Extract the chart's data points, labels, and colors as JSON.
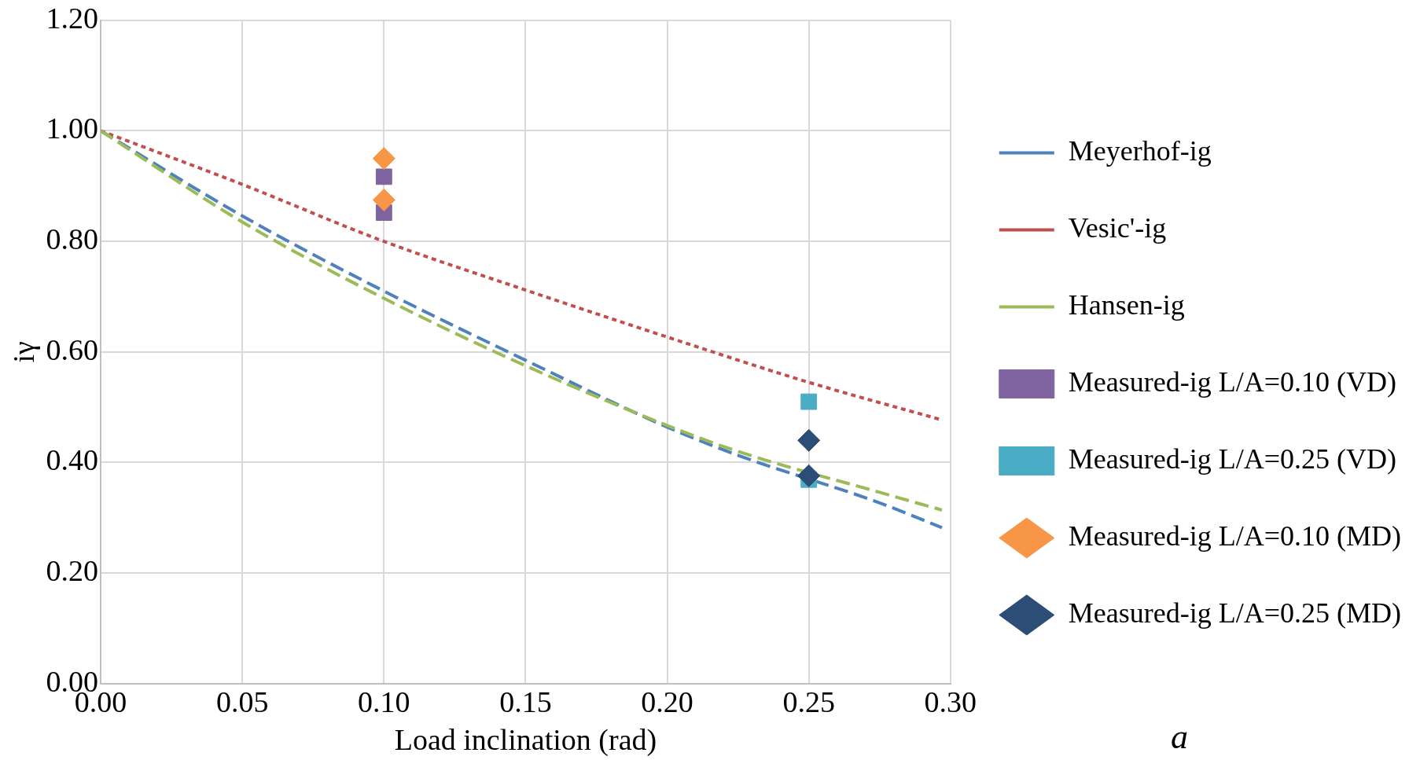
{
  "chart_data": {
    "type": "line",
    "xlabel": "Load inclination (rad)",
    "ylabel": "iγ",
    "xlim": [
      0,
      0.3
    ],
    "ylim": [
      0,
      1.2
    ],
    "xticks": [
      {
        "value": 0,
        "label": "0.00"
      },
      {
        "value": 0.05,
        "label": "0.05"
      },
      {
        "value": 0.1,
        "label": "0.10"
      },
      {
        "value": 0.15,
        "label": "0.15"
      },
      {
        "value": 0.2,
        "label": "0.20"
      },
      {
        "value": 0.25,
        "label": "0.25"
      },
      {
        "value": 0.3,
        "label": "0.30"
      }
    ],
    "yticks": [
      {
        "value": 0,
        "label": "0.00"
      },
      {
        "value": 0.2,
        "label": "0.20"
      },
      {
        "value": 0.4,
        "label": "0.40"
      },
      {
        "value": 0.6,
        "label": "0.60"
      },
      {
        "value": 0.8,
        "label": "0.80"
      },
      {
        "value": 1,
        "label": "1.00"
      },
      {
        "value": 1.2,
        "label": "1.20"
      }
    ],
    "grid": true,
    "legend": "right",
    "series": [
      {
        "name": "Meyerhof-ig",
        "color": "#4f81bd",
        "line_style": "dashed",
        "marker": "none",
        "x": [
          0,
          0.05,
          0.1,
          0.15,
          0.2,
          0.225,
          0.275,
          0.297
        ],
        "values": [
          1,
          0.846,
          0.71,
          0.585,
          0.464,
          0.413,
          0.327,
          0.282
        ]
      },
      {
        "name": "Vesic'-ig",
        "color": "#c0504d",
        "line_style": "dotted",
        "marker": "none",
        "x": [
          0,
          0.05,
          0.1,
          0.15,
          0.2,
          0.25,
          0.297
        ],
        "values": [
          1,
          0.903,
          0.8,
          0.712,
          0.627,
          0.545,
          0.477
        ]
      },
      {
        "name": "Hansen-ig",
        "color": "#9bbb59",
        "line_style": "dashed",
        "marker": "none",
        "x": [
          0,
          0.05,
          0.1,
          0.15,
          0.2,
          0.225,
          0.275,
          0.297
        ],
        "values": [
          1,
          0.835,
          0.697,
          0.575,
          0.467,
          0.42,
          0.346,
          0.314
        ]
      },
      {
        "name": "Measured-ig L/A=0.10 (VD)",
        "type": "scatter",
        "color": "#8064a2",
        "marker": "square",
        "x": [
          0.1,
          0.1
        ],
        "values": [
          0.917,
          0.852
        ]
      },
      {
        "name": "Measured-ig L/A=0.25 (VD)",
        "type": "scatter",
        "color": "#4bacc6",
        "marker": "square",
        "x": [
          0.25,
          0.25
        ],
        "values": [
          0.51,
          0.369
        ]
      },
      {
        "name": "Measured-ig L/A=0.10 (MD)",
        "type": "scatter",
        "color": "#f79646",
        "marker": "diamond",
        "x": [
          0.1,
          0.1
        ],
        "values": [
          0.95,
          0.875
        ]
      },
      {
        "name": "Measured-ig L/A=0.25 (MD)",
        "type": "scatter",
        "color": "#2c4d75",
        "marker": "diamond",
        "x": [
          0.25,
          0.25
        ],
        "values": [
          0.44,
          0.376
        ]
      }
    ],
    "annotations": [
      "a"
    ]
  }
}
